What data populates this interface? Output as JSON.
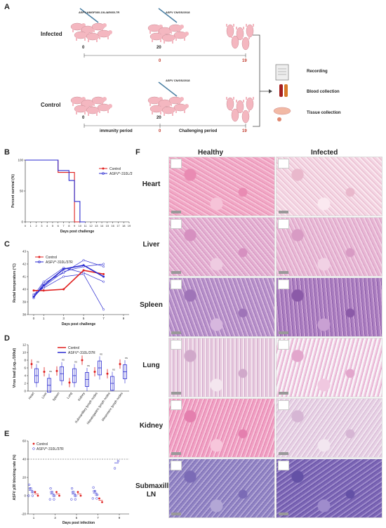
{
  "panels": {
    "A": "A",
    "B": "B",
    "C": "C",
    "D": "D",
    "E": "E",
    "F": "F"
  },
  "panelA": {
    "infected_label": "Infected",
    "control_label": "Control",
    "vaccine_label": "ASFV-ΔMGF360-10L/ΔE665-7R",
    "challenge_label_infected": "ASFV CN/GS/2018",
    "challenge_label_control": "ASFV CN/GS/2018",
    "d0_inf": "0",
    "d20_inf": "20",
    "c0_inf": "0",
    "c19_inf": "19",
    "d0_ctl": "0",
    "d20_ctl": "20",
    "c0_ctl": "0",
    "c19_ctl": "19",
    "immunity": "immunity period",
    "challenging": "Challenging period",
    "recording": "Recording",
    "blood": "Blood collection",
    "tissue": "Tissue collection"
  },
  "legend": {
    "control": "Control",
    "mutant": "ASFV^-310L/37R"
  },
  "panelB": {
    "ylabel": "Percent survival (%)",
    "xlabel": "Days post challenge",
    "yticks": [
      "0",
      "50",
      "100"
    ],
    "xticks": [
      "0",
      "1",
      "2",
      "3",
      "4",
      "5",
      "6",
      "7",
      "8",
      "9",
      "10",
      "11",
      "12",
      "13",
      "14",
      "15",
      "16",
      "17",
      "18",
      "19"
    ]
  },
  "panelC": {
    "ylabel": "Rectal temperature (°C)",
    "xlabel": "Days post challenge",
    "yticks": [
      "38",
      "39",
      "40",
      "41",
      "42",
      "43"
    ],
    "xticks": [
      "0",
      "1",
      "3",
      "5",
      "7",
      "9"
    ]
  },
  "panelD": {
    "ylabel": "Virus load (Log₁₀/100ul)",
    "yticks": [
      "0",
      "2",
      "4",
      "6",
      "8",
      "10",
      "12"
    ],
    "tissues": [
      "Heart",
      "Liver",
      "Spleen",
      "Lung",
      "Kidney",
      "Submaxillary lymph nodes",
      "Hepatogastric lymph nodes",
      "Mesenteric lymph nodes"
    ],
    "ns": "ns"
  },
  "panelE": {
    "ylabel": "ASFV p30 blocking rate (%)",
    "xlabel": "Days post infection",
    "yticks": [
      "-20",
      "0",
      "20",
      "40",
      "60"
    ],
    "xticks": [
      "1",
      "3",
      "5",
      "7",
      "9"
    ]
  },
  "panelF": {
    "healthy": "Healthy",
    "infected": "Infected",
    "rows": [
      "Heart",
      "Liver",
      "Spleen",
      "Lung",
      "Kidney",
      "Submaxillary\nLN"
    ]
  },
  "chart_data": [
    {
      "type": "line",
      "id": "B",
      "xlabel": "Days post challenge",
      "ylabel": "Percent survival (%)",
      "ylim": [
        0,
        100
      ],
      "series": [
        {
          "name": "Control",
          "color": "#e0201f",
          "x": [
            0,
            1,
            2,
            3,
            4,
            5,
            6,
            7,
            8,
            9,
            10
          ],
          "values": [
            100,
            100,
            100,
            100,
            100,
            100,
            80,
            80,
            80,
            0,
            0
          ]
        },
        {
          "name": "ASFV^-310L/37R",
          "color": "#2a2ad0",
          "x": [
            0,
            1,
            2,
            3,
            4,
            5,
            6,
            7,
            8,
            9,
            10,
            11
          ],
          "values": [
            100,
            100,
            100,
            100,
            100,
            100,
            83,
            83,
            67,
            33,
            0,
            0
          ]
        }
      ]
    },
    {
      "type": "line",
      "id": "C",
      "xlabel": "Days post challenge",
      "ylabel": "Rectal temperature (°C)",
      "ylim": [
        38,
        43
      ],
      "series": [
        {
          "name": "Control",
          "color": "#e0201f",
          "x": [
            0,
            1,
            3,
            5,
            7
          ],
          "values": [
            39.9,
            39.9,
            40.0,
            41.5,
            41.2
          ]
        },
        {
          "name": "ASFV^-310L/37R",
          "color": "#2a2ad0",
          "x": [
            0,
            1,
            3,
            5,
            7
          ],
          "values": [
            39.4,
            40.3,
            41.6,
            41.9,
            41.0
          ]
        }
      ]
    },
    {
      "type": "bar",
      "id": "D",
      "categories": [
        "Heart",
        "Liver",
        "Spleen",
        "Lung",
        "Kidney",
        "Submaxillary lymph nodes",
        "Hepatogastric lymph nodes",
        "Mesenteric lymph nodes"
      ],
      "ylabel": "Virus load (Log₁₀/100ul)",
      "ylim": [
        0,
        12
      ],
      "series": [
        {
          "name": "Control",
          "color": "#e0201f",
          "values": [
            7.0,
            5.0,
            5.2,
            2.2,
            8.0,
            5.0,
            4.5,
            7.0
          ]
        },
        {
          "name": "ASFV^-310L/37R",
          "color": "#2a2ad0",
          "values": [
            4.0,
            1.5,
            4.5,
            4.0,
            3.0,
            6.0,
            2.0,
            5.0
          ]
        }
      ]
    },
    {
      "type": "scatter",
      "id": "E",
      "xlabel": "Days post infection",
      "ylabel": "ASFV p30 blocking rate (%)",
      "ylim": [
        -20,
        60
      ],
      "series": [
        {
          "name": "Control",
          "color": "#e0201f",
          "x": [
            1,
            3,
            5,
            7
          ],
          "values": [
            2,
            2,
            2,
            -5
          ]
        },
        {
          "name": "ASFV^-310L/37R",
          "color": "#2a2ad0",
          "x": [
            1,
            3,
            5,
            7,
            9
          ],
          "values": [
            6,
            2,
            2,
            3,
            36
          ]
        }
      ]
    }
  ]
}
